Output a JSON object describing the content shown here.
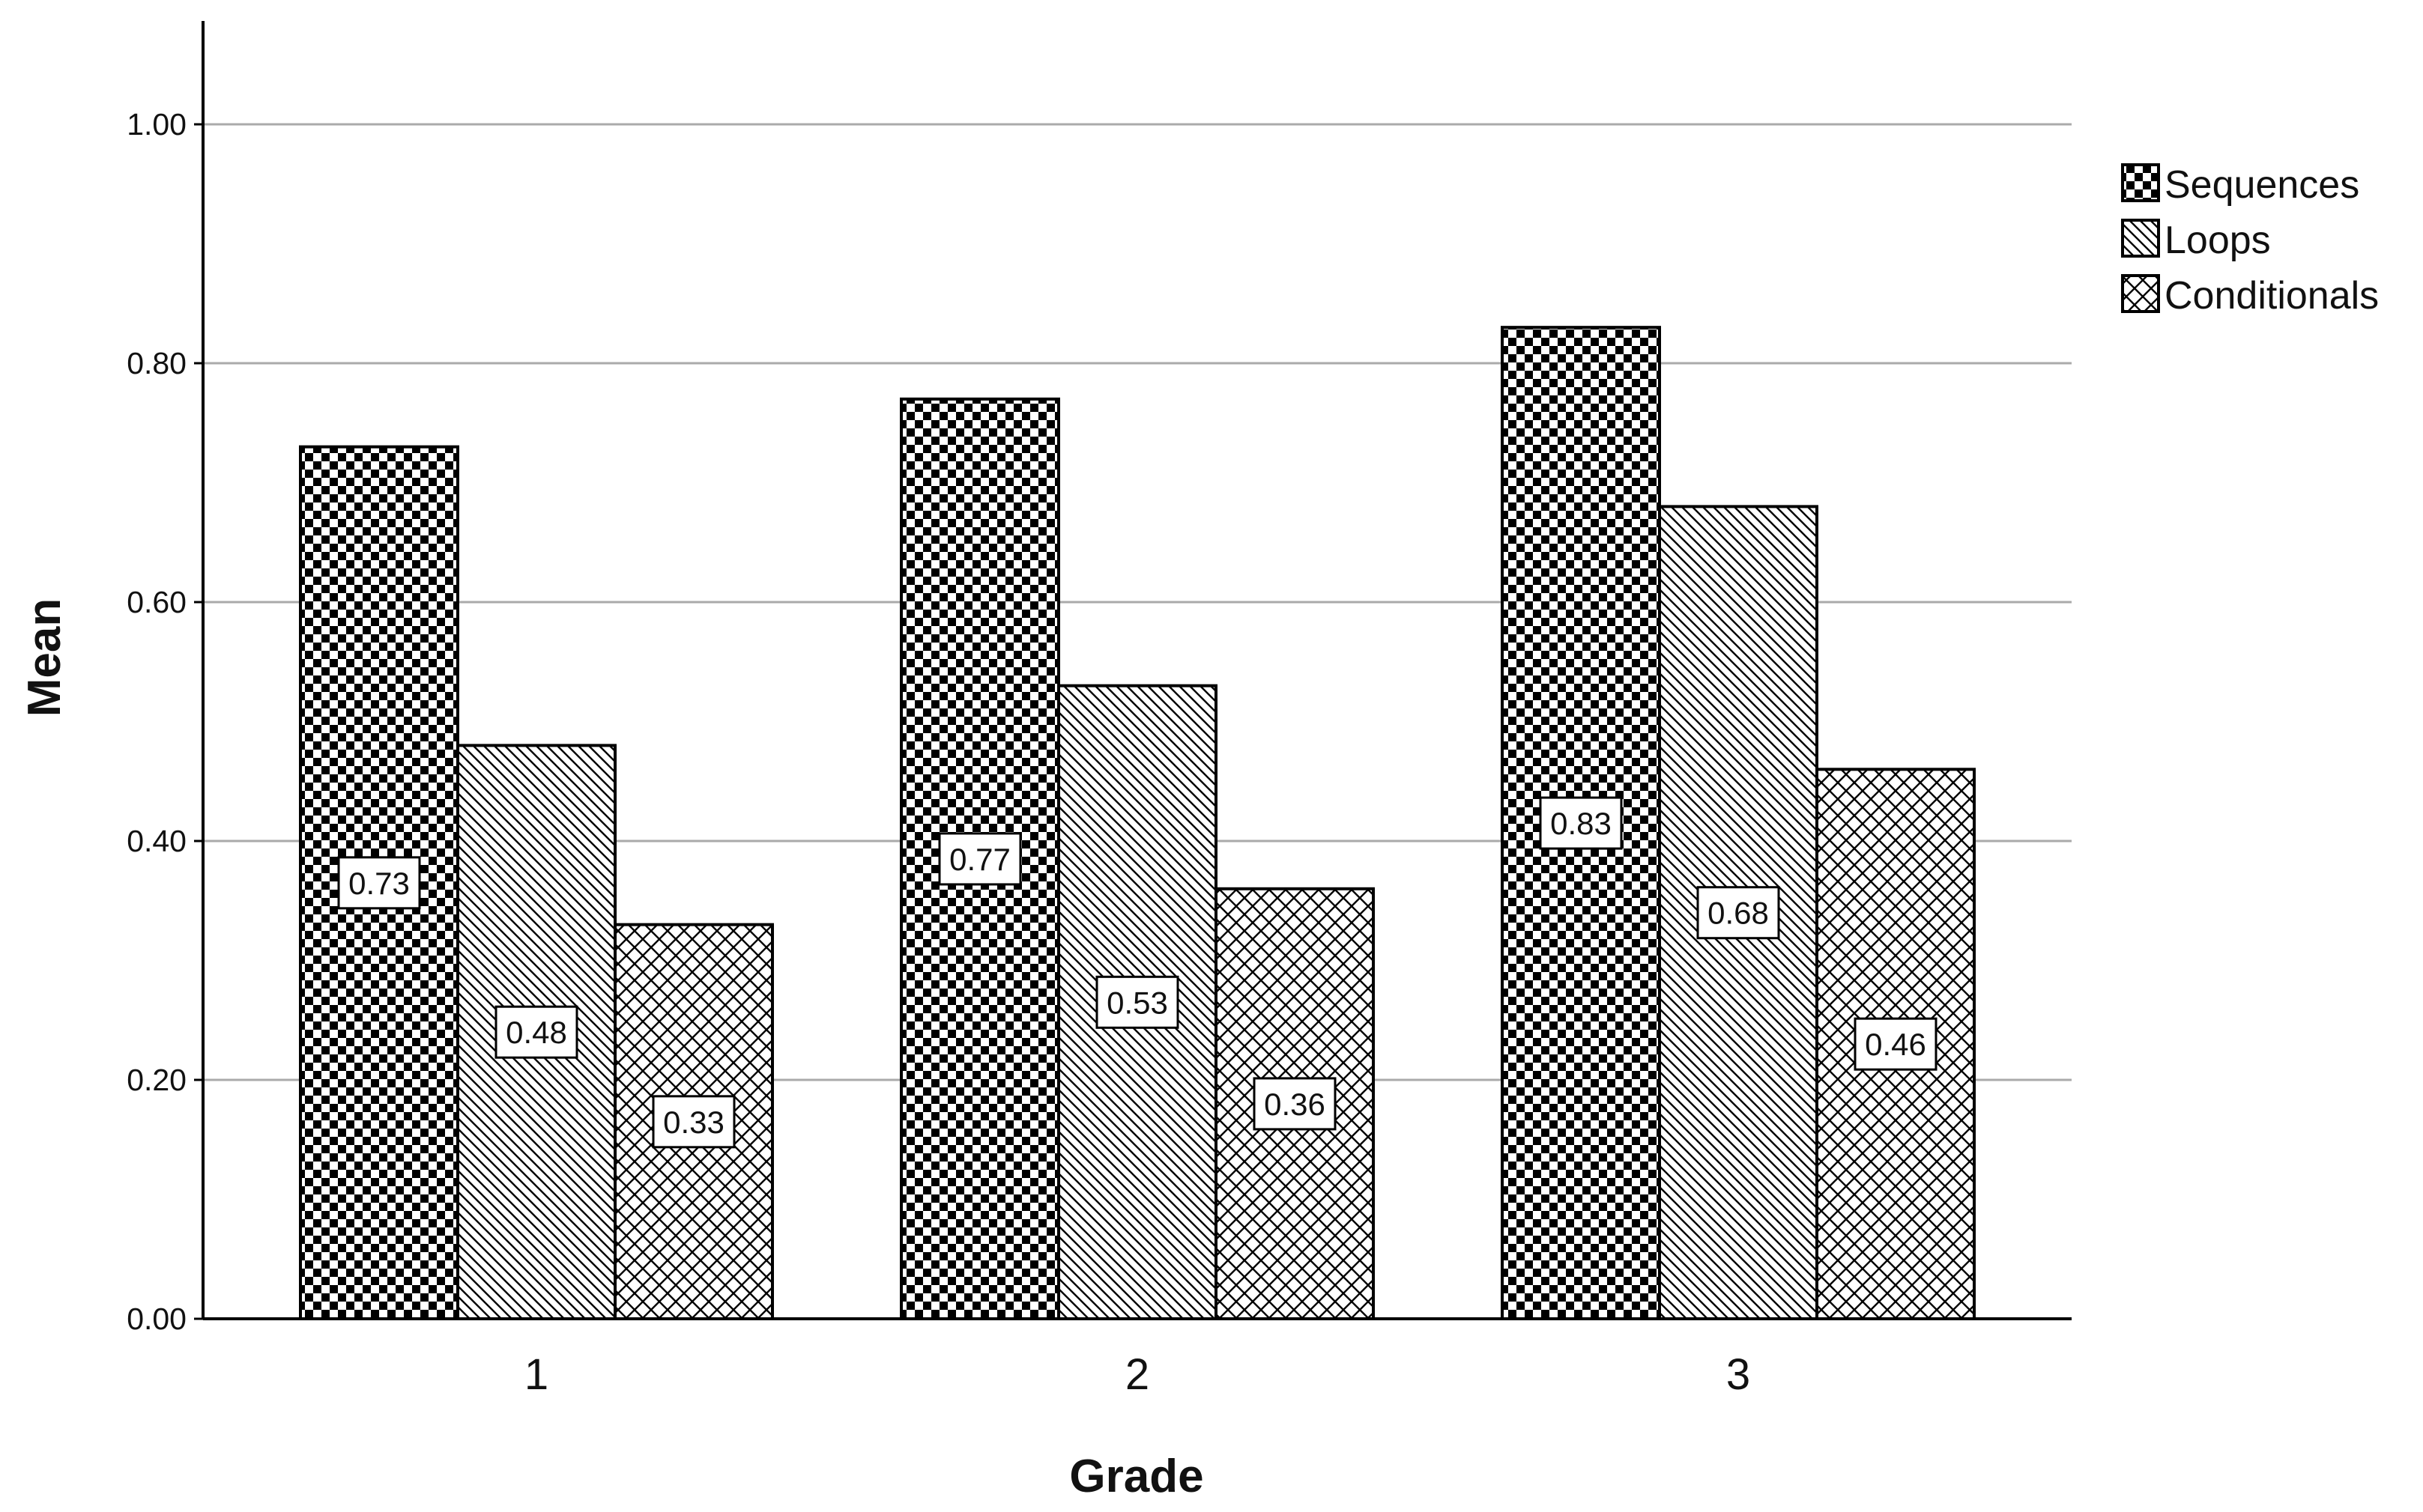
{
  "chart_data": {
    "type": "bar",
    "xlabel": "Grade",
    "ylabel": "Mean",
    "categories": [
      "1",
      "2",
      "3"
    ],
    "series": [
      {
        "name": "Sequences",
        "pattern": "checker",
        "values": [
          0.73,
          0.77,
          0.83
        ]
      },
      {
        "name": "Loops",
        "pattern": "diagonal",
        "values": [
          0.48,
          0.53,
          0.68
        ]
      },
      {
        "name": "Conditionals",
        "pattern": "crosshatch",
        "values": [
          0.33,
          0.36,
          0.46
        ]
      }
    ],
    "data_labels": [
      [
        "0.73",
        "0.77",
        "0.83"
      ],
      [
        "0.48",
        "0.53",
        "0.68"
      ],
      [
        "0.33",
        "0.36",
        "0.46"
      ]
    ],
    "yticks": [
      "0.00",
      "0.20",
      "0.40",
      "0.60",
      "0.80",
      "1.00"
    ],
    "ylim": [
      0,
      1.08
    ],
    "grid": true,
    "legend_position": "top-right",
    "colors": {
      "bar_stroke": "#000000",
      "grid": "#aaaaaa",
      "axis": "#000000",
      "label_box": "#ffffff"
    }
  }
}
